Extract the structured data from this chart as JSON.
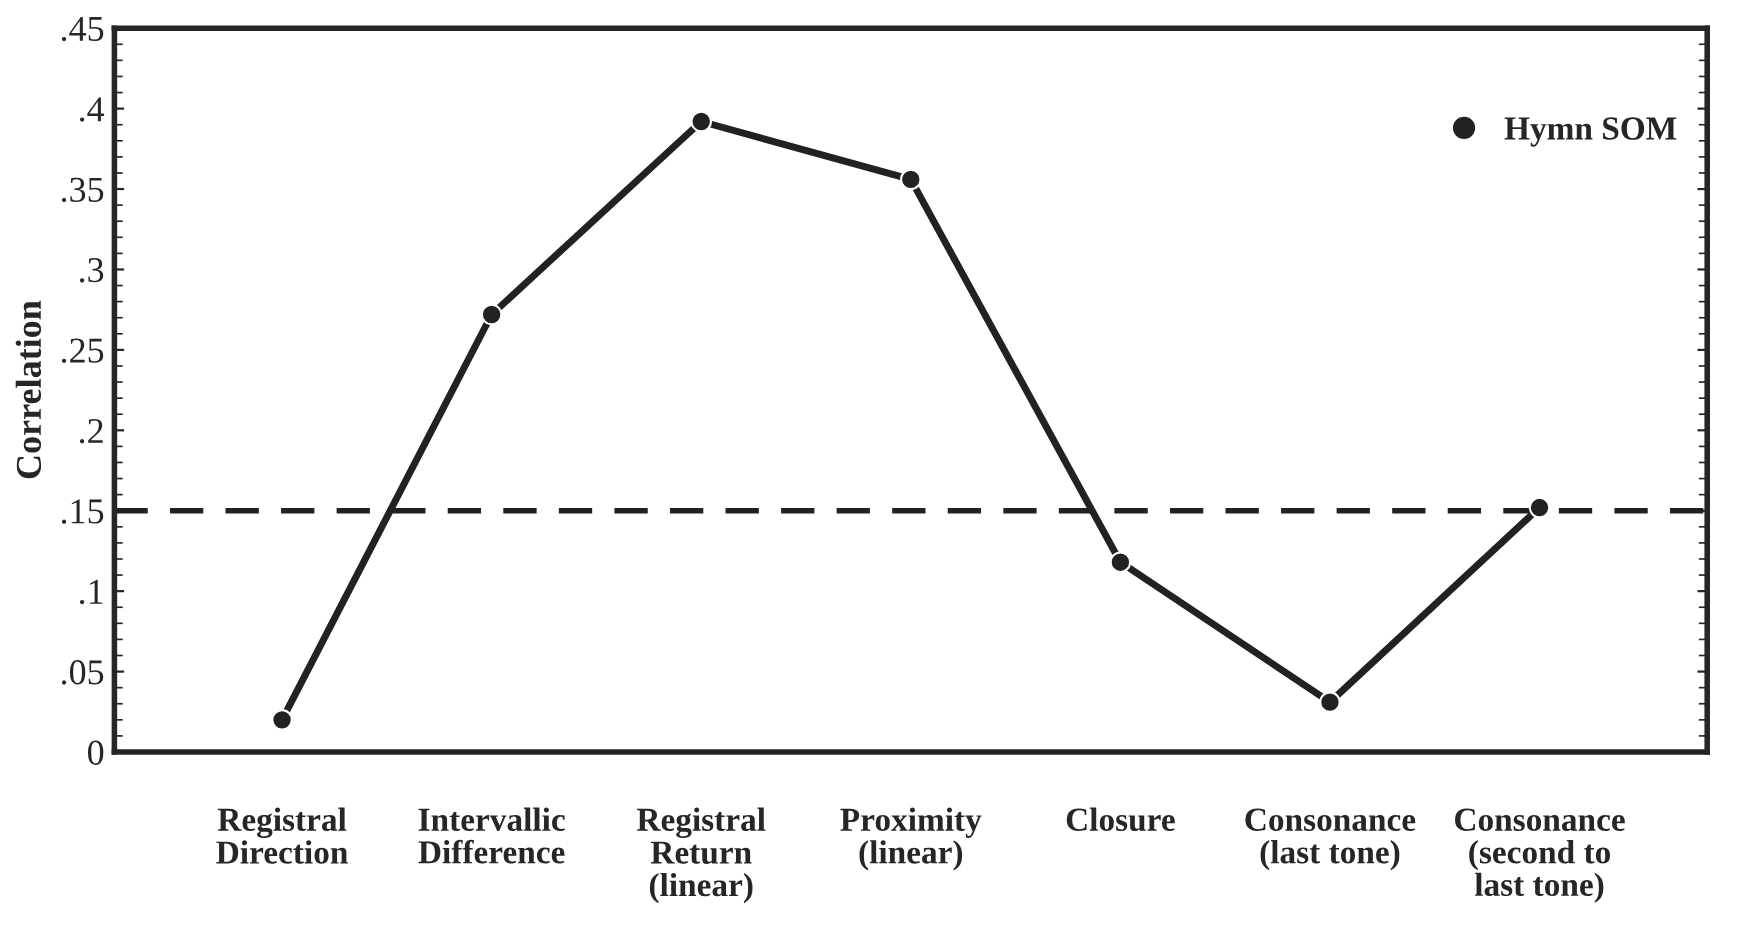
{
  "chart_data": {
    "type": "line",
    "ylabel": "Correlation",
    "categories": [
      "Registral\nDirection",
      "Intervallic\nDifference",
      "Registral\nReturn\n(linear)",
      "Proximity\n(linear)",
      "Closure",
      "Consonance\n(last tone)",
      "Consonance\n(second to\nlast tone)"
    ],
    "series": [
      {
        "name": "Hymn SOM",
        "color": "#222222",
        "values": [
          0.02,
          0.272,
          0.392,
          0.356,
          0.118,
          0.031,
          0.152
        ]
      }
    ],
    "ylim": [
      0,
      0.45
    ],
    "yticks": [
      {
        "value": 0,
        "label": "0"
      },
      {
        "value": 0.05,
        "label": ".05"
      },
      {
        "value": 0.1,
        "label": ".1"
      },
      {
        "value": 0.15,
        "label": ".15"
      },
      {
        "value": 0.2,
        "label": ".2"
      },
      {
        "value": 0.25,
        "label": ".25"
      },
      {
        "value": 0.3,
        "label": ".3"
      },
      {
        "value": 0.35,
        "label": ".35"
      },
      {
        "value": 0.4,
        "label": ".4"
      },
      {
        "value": 0.45,
        "label": ".45"
      }
    ],
    "ref_lines": [
      {
        "axis": "y",
        "value": 0.15,
        "color": "#222222",
        "line_style": "dashed"
      }
    ],
    "marker": "circle",
    "line_style": "solid",
    "legend": "top right",
    "grid": false
  }
}
